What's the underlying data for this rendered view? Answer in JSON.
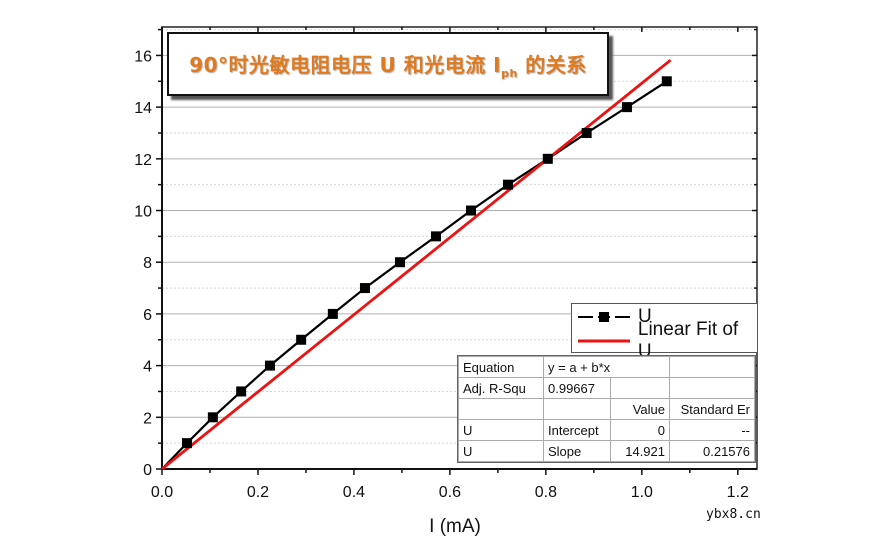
{
  "chart_data": {
    "type": "line",
    "title": "90°时光敏电阻电压 U 和光电流 Iph 的关系",
    "title_main": "90°时光敏电阻电压 U 和光电流 I",
    "title_sub": "ph",
    "title_tail": " 的关系",
    "xlabel": "I (mA)",
    "ylabel": "",
    "xlim": [
      0.0,
      1.24
    ],
    "ylim": [
      0,
      17.1
    ],
    "x_ticks": [
      "0.0",
      "0.2",
      "0.4",
      "0.6",
      "0.8",
      "1.0",
      "1.2"
    ],
    "y_ticks": [
      "0",
      "2",
      "4",
      "6",
      "8",
      "10",
      "12",
      "14",
      "16"
    ],
    "grid": true,
    "legend_position": "lower right",
    "series": [
      {
        "name": "U",
        "style": "black line with square markers",
        "color": "#000000",
        "x": [
          0.052,
          0.106,
          0.165,
          0.225,
          0.29,
          0.356,
          0.423,
          0.496,
          0.571,
          0.644,
          0.721,
          0.804,
          0.885,
          0.969,
          1.052
        ],
        "y": [
          1,
          2,
          3,
          4,
          5,
          6,
          7,
          8,
          9,
          10,
          11,
          12,
          13,
          14,
          15
        ]
      },
      {
        "name": "Linear Fit of U",
        "style": "red line",
        "color": "#ee1111",
        "x": [
          0.0,
          1.06
        ],
        "y": [
          0.0,
          15.82
        ]
      }
    ],
    "fit_table": {
      "rows": [
        [
          "Equation",
          "y = a + b*x",
          "",
          ""
        ],
        [
          "Adj. R-Squ",
          "0.99667",
          "",
          ""
        ],
        [
          "",
          "",
          "Value",
          "Standard Er"
        ],
        [
          "U",
          "Intercept",
          "0",
          "--"
        ],
        [
          "U",
          "Slope",
          "14.921",
          "0.21576"
        ]
      ]
    }
  },
  "legend": {
    "items": [
      {
        "label": "U"
      },
      {
        "label": "Linear Fit of U"
      }
    ]
  },
  "watermark": "ybx8.cn",
  "colors": {
    "title": "#e07a1e",
    "fit_line": "#ee1111",
    "data_line": "#000000"
  }
}
